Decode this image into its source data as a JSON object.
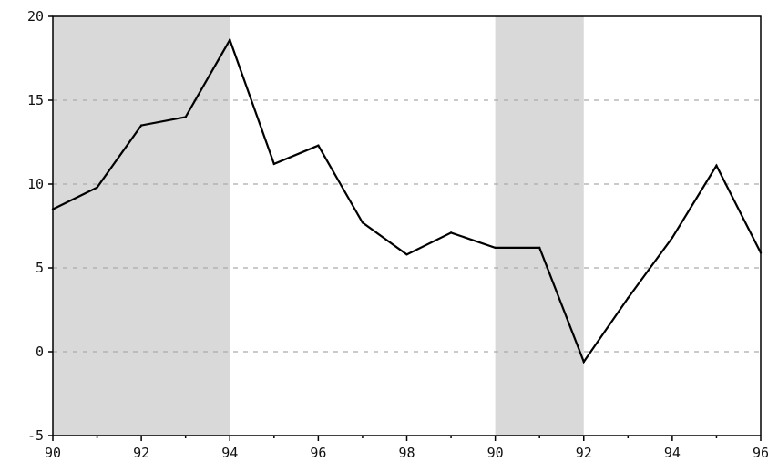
{
  "chart_data": {
    "type": "line",
    "title": "",
    "xlabel": "",
    "ylabel": "",
    "x_tick_labels": [
      "90",
      "92",
      "94",
      "96",
      "98",
      "90",
      "92",
      "94",
      "96"
    ],
    "y_tick_labels": [
      "20",
      "15",
      "10",
      "5",
      "0",
      "-5"
    ],
    "ylim": [
      -5,
      20
    ],
    "yticks": [
      -5,
      0,
      5,
      10,
      15,
      20
    ],
    "x_range": [
      1990,
      2006
    ],
    "grid": "horizontal dashed",
    "shaded_periods": [
      {
        "start": 1990,
        "end": 1994
      },
      {
        "start": 2000,
        "end": 2002
      }
    ],
    "series": [
      {
        "x": [
          1990,
          1991,
          1992,
          1993,
          1994,
          1995,
          1996,
          1997,
          1998,
          1999,
          2000,
          2001,
          2002,
          2003,
          2004,
          2005,
          2006
        ],
        "values": [
          8.5,
          9.8,
          13.5,
          14.0,
          18.6,
          11.2,
          12.3,
          7.7,
          5.8,
          7.1,
          6.2,
          6.2,
          -0.6,
          3.2,
          6.8,
          11.1,
          5.9
        ]
      }
    ]
  },
  "colors": {
    "shade": "#d9d9d9",
    "line": "#000000",
    "grid": "#aaaaaa",
    "axis": "#000000"
  }
}
